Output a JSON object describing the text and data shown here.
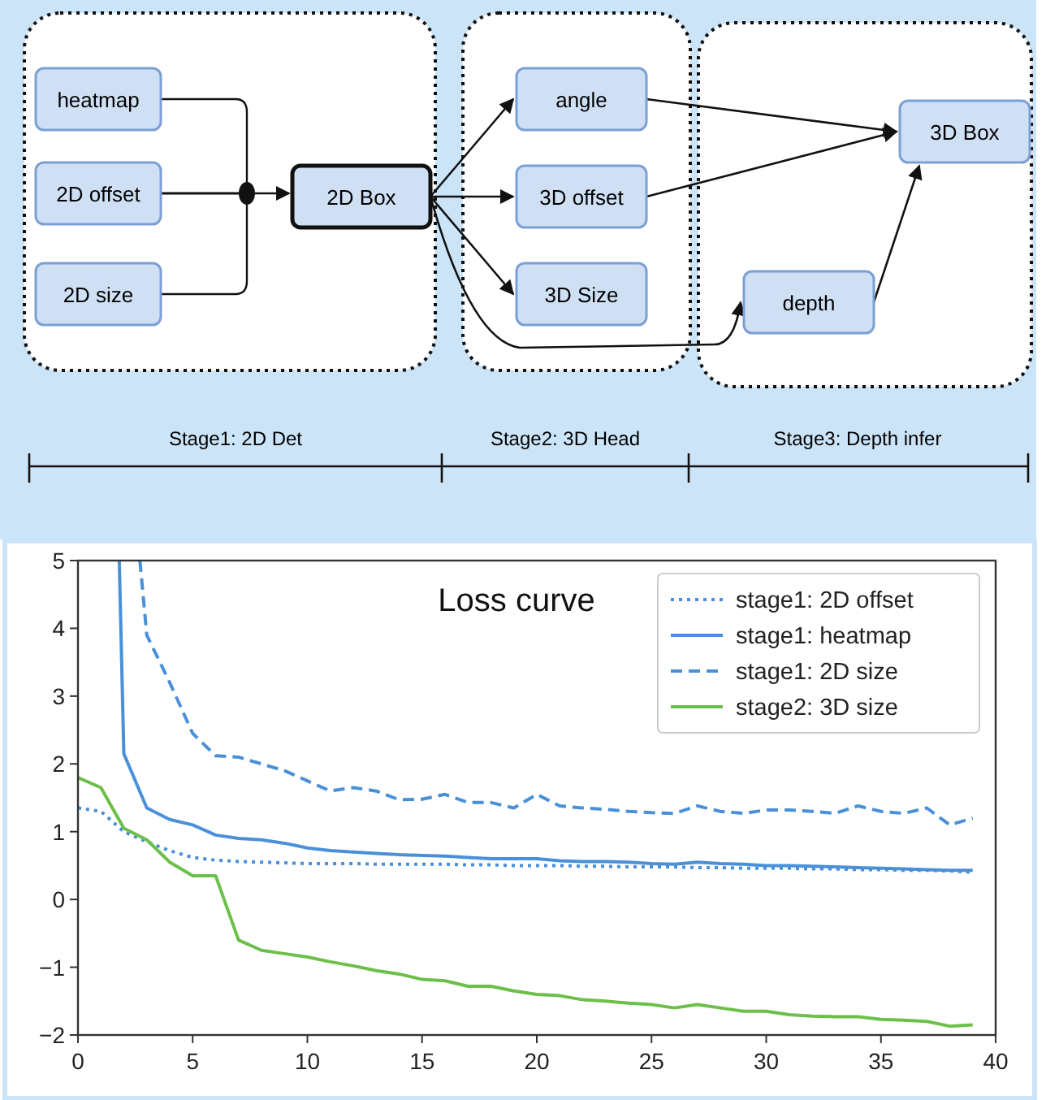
{
  "chart_data": [
    {
      "type": "other",
      "annotations": [
        "heatmap",
        "2D offset",
        "2D size",
        "2D Box",
        "angle",
        "3D offset",
        "3D Size",
        "depth",
        "3D Box",
        "Stage1: 2D Det",
        "Stage2: 3D Head",
        "Stage3: Depth infer"
      ]
    },
    {
      "type": "line",
      "title": "Loss curve",
      "legend": "top right",
      "x": [
        0,
        1,
        2,
        3,
        4,
        5,
        6,
        7,
        8,
        9,
        10,
        11,
        12,
        13,
        14,
        15,
        16,
        17,
        18,
        19,
        20,
        21,
        22,
        23,
        24,
        25,
        26,
        27,
        28,
        29,
        30,
        31,
        32,
        33,
        34,
        35,
        36,
        37,
        38,
        39
      ],
      "xlim": [
        0,
        40
      ],
      "xticks": [
        0,
        5,
        10,
        15,
        20,
        25,
        30,
        35,
        40
      ],
      "ylim": [
        -2,
        5
      ],
      "yticks": [
        -2,
        -1,
        0,
        1,
        2,
        3,
        4,
        5
      ],
      "series": [
        {
          "name": "stage1: 2D offset",
          "color": "#4a90d9",
          "line_style": "dotted",
          "values": [
            1.35,
            1.3,
            1.0,
            0.85,
            0.72,
            0.62,
            0.58,
            0.56,
            0.55,
            0.54,
            0.53,
            0.53,
            0.53,
            0.52,
            0.52,
            0.52,
            0.52,
            0.51,
            0.51,
            0.5,
            0.5,
            0.5,
            0.49,
            0.49,
            0.48,
            0.48,
            0.48,
            0.47,
            0.47,
            0.46,
            0.46,
            0.46,
            0.45,
            0.45,
            0.44,
            0.44,
            0.43,
            0.43,
            0.42,
            0.4
          ]
        },
        {
          "name": "stage1: heatmap",
          "color": "#4a90d9",
          "line_style": "solid",
          "x": [
            1.8,
            2,
            3,
            4,
            5,
            6,
            7,
            8,
            9,
            10,
            11,
            12,
            13,
            14,
            15,
            16,
            17,
            18,
            19,
            20,
            21,
            22,
            23,
            24,
            25,
            26,
            27,
            28,
            29,
            30,
            31,
            32,
            33,
            34,
            35,
            36,
            37,
            38,
            39
          ],
          "values": [
            5,
            2.15,
            1.35,
            1.18,
            1.1,
            0.95,
            0.9,
            0.88,
            0.83,
            0.76,
            0.72,
            0.7,
            0.68,
            0.66,
            0.65,
            0.64,
            0.62,
            0.6,
            0.6,
            0.6,
            0.57,
            0.56,
            0.56,
            0.55,
            0.53,
            0.52,
            0.55,
            0.53,
            0.52,
            0.5,
            0.5,
            0.49,
            0.48,
            0.47,
            0.46,
            0.45,
            0.44,
            0.43,
            0.43
          ]
        },
        {
          "name": "stage1: 2D size",
          "color": "#4a90d9",
          "line_style": "dashed",
          "x": [
            2.7,
            3,
            4,
            5,
            6,
            7,
            8,
            9,
            10,
            11,
            12,
            13,
            14,
            15,
            16,
            17,
            18,
            19,
            20,
            21,
            22,
            23,
            24,
            25,
            26,
            27,
            28,
            29,
            30,
            31,
            32,
            33,
            34,
            35,
            36,
            37,
            38,
            39
          ],
          "values": [
            5,
            3.9,
            3.2,
            2.45,
            2.12,
            2.1,
            2.0,
            1.9,
            1.75,
            1.6,
            1.65,
            1.6,
            1.47,
            1.48,
            1.55,
            1.43,
            1.43,
            1.35,
            1.55,
            1.38,
            1.35,
            1.33,
            1.3,
            1.28,
            1.27,
            1.38,
            1.3,
            1.27,
            1.32,
            1.32,
            1.3,
            1.27,
            1.38,
            1.3,
            1.27,
            1.35,
            1.1,
            1.2
          ]
        },
        {
          "name": "stage2: 3D size",
          "color": "#6cc04a",
          "line_style": "solid",
          "values": [
            1.8,
            1.65,
            1.05,
            0.88,
            0.55,
            0.35,
            0.35,
            -0.6,
            -0.75,
            -0.8,
            -0.85,
            -0.92,
            -0.98,
            -1.05,
            -1.1,
            -1.18,
            -1.2,
            -1.28,
            -1.28,
            -1.35,
            -1.4,
            -1.42,
            -1.48,
            -1.5,
            -1.53,
            -1.55,
            -1.6,
            -1.55,
            -1.6,
            -1.65,
            -1.65,
            -1.7,
            -1.72,
            -1.73,
            -1.73,
            -1.77,
            -1.78,
            -1.8,
            -1.87,
            -1.85
          ]
        }
      ]
    }
  ]
}
